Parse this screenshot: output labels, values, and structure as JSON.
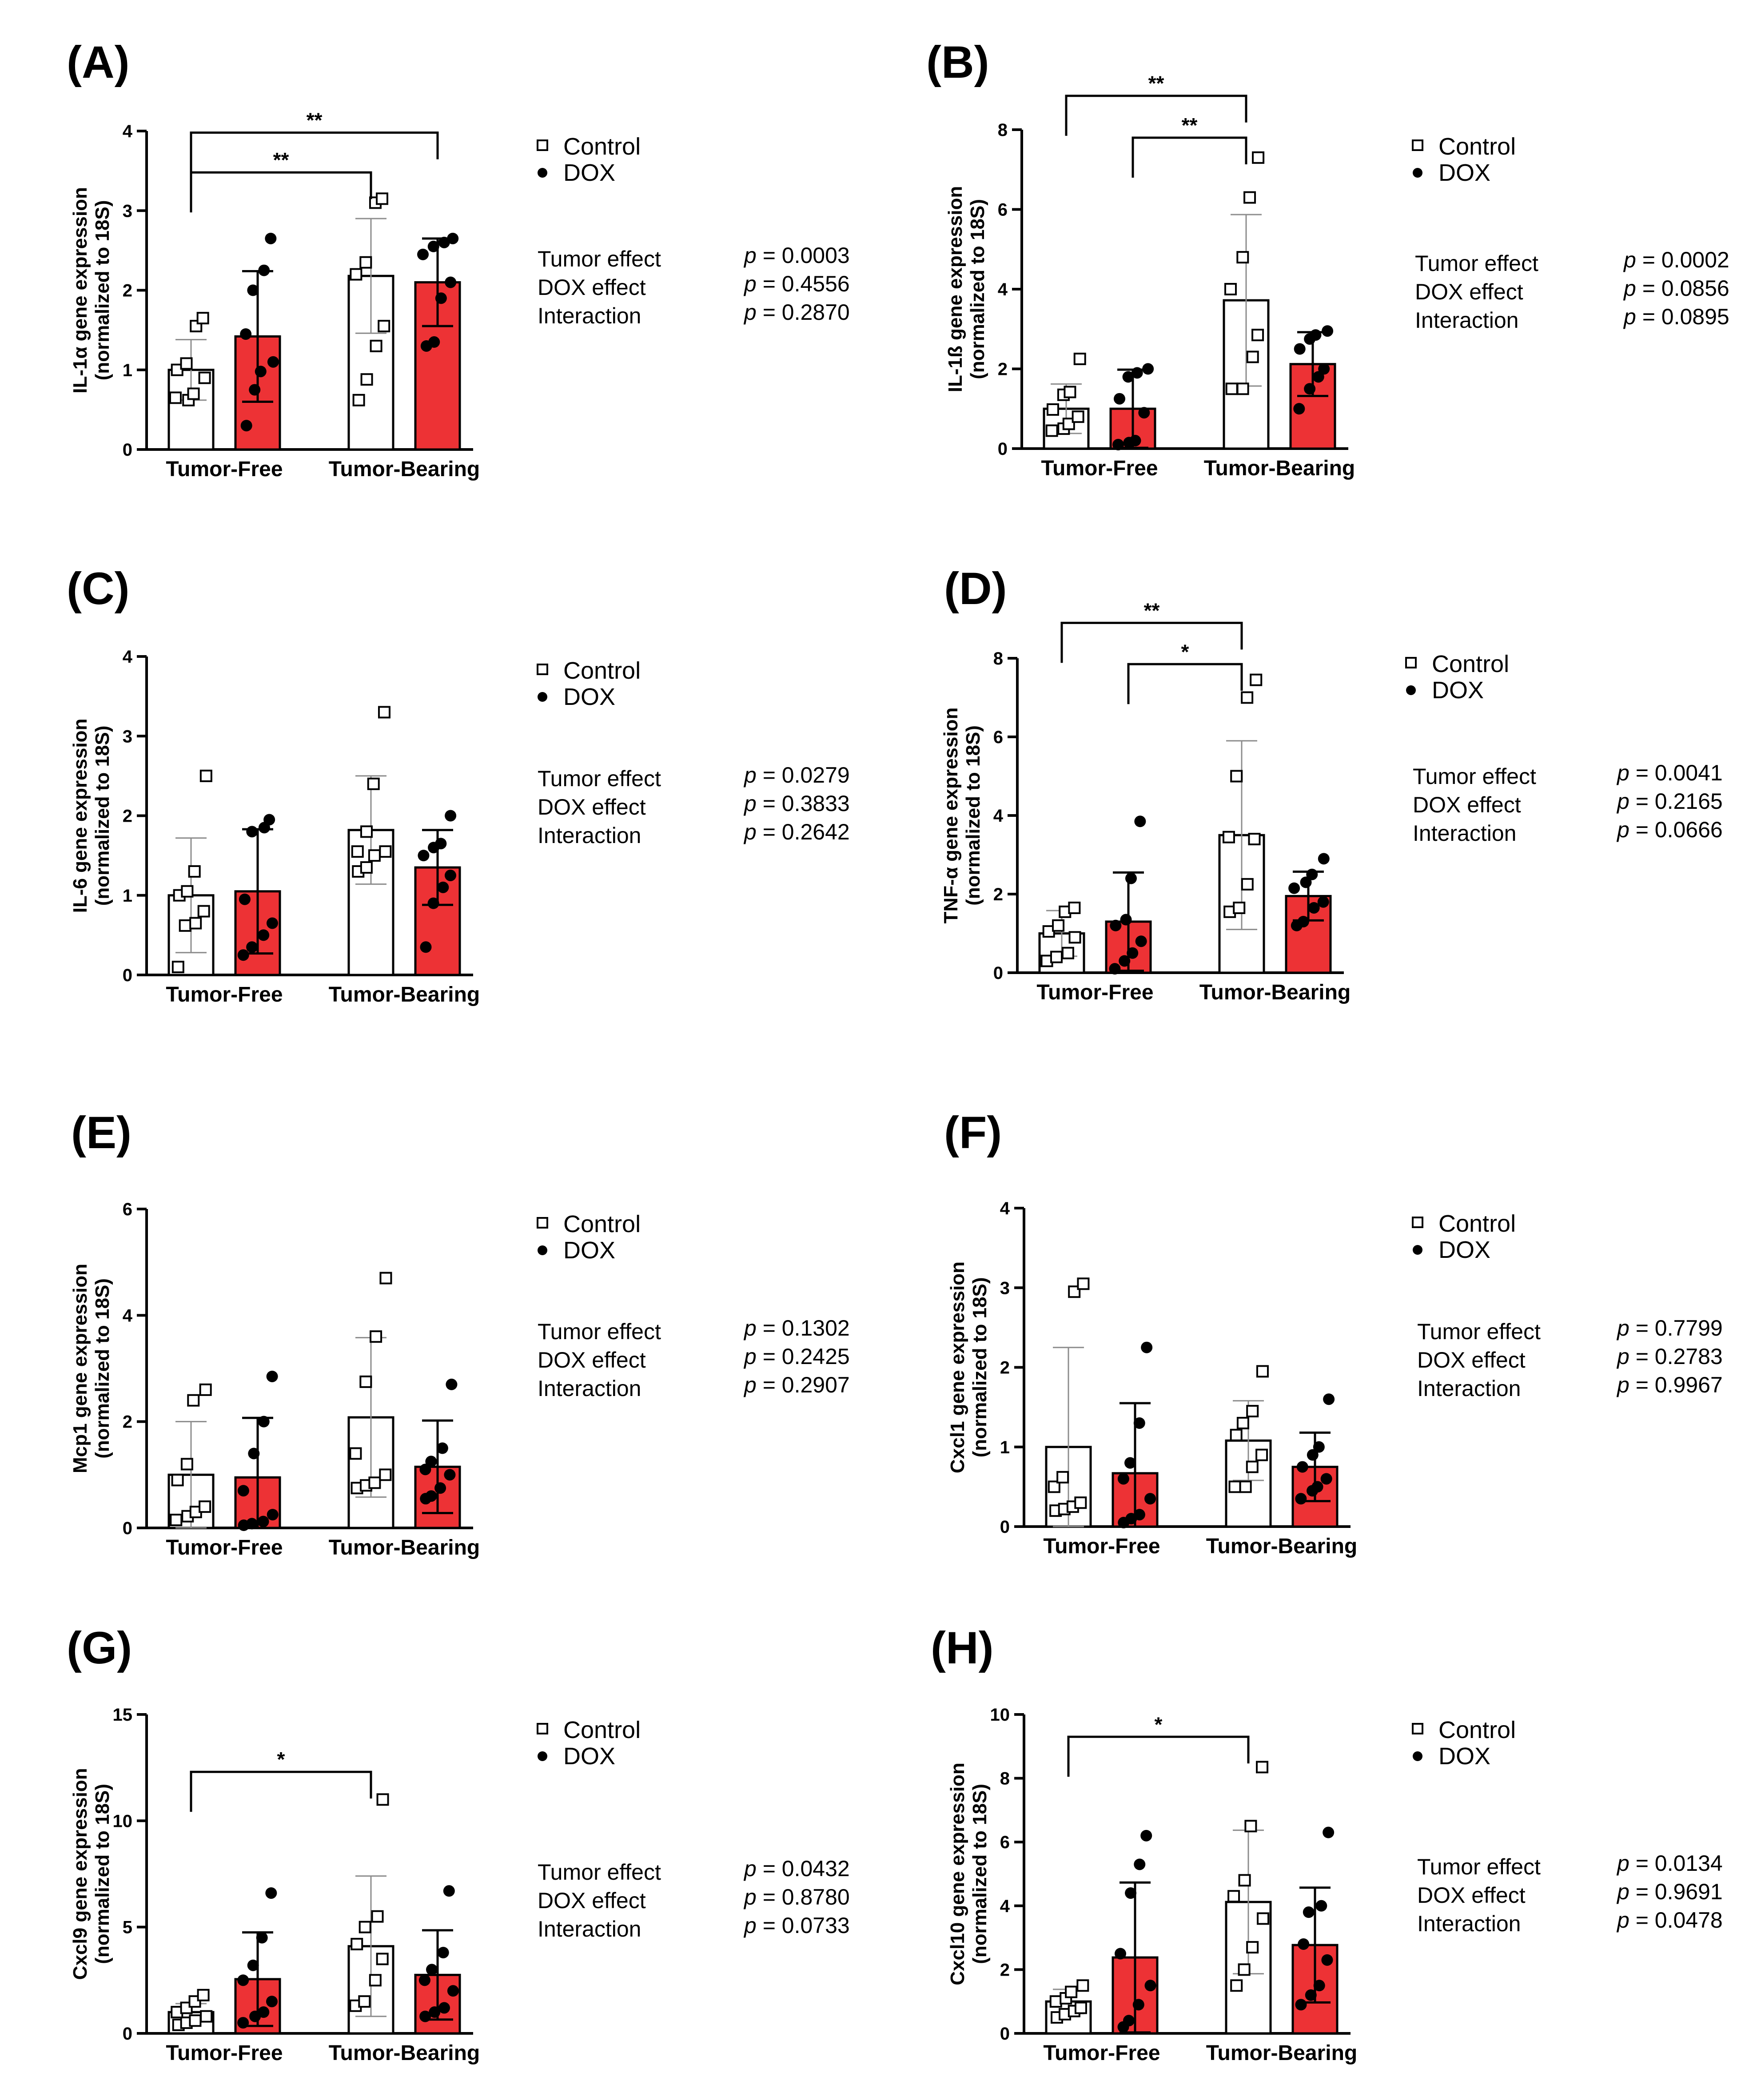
{
  "colors": {
    "control_fill": "#ffffff",
    "dox_fill": "#ed3235",
    "axis": "#000000",
    "error_bar_control": "#8c8c8c",
    "error_bar_dox": "#000000"
  },
  "chart_data": [
    {
      "panel": "(A)",
      "type": "bar",
      "ylabel_line1": "IL-1α gene expression",
      "ylabel_line2": "(normalized to 18S)",
      "ylim": [
        0,
        4
      ],
      "yticks": [
        "0",
        "1",
        "2",
        "3",
        "4"
      ],
      "categories": [
        "Tumor-Free",
        "Tumor-Bearing"
      ],
      "series": [
        {
          "name": "Control",
          "values": [
            1.0,
            2.18
          ],
          "errors": [
            0.38,
            0.72
          ],
          "points": [
            [
              0.65,
              0.62,
              0.7,
              0.9,
              1.0,
              1.08,
              1.55,
              1.65
            ],
            [
              0.62,
              0.88,
              1.3,
              1.55,
              2.2,
              2.35,
              3.1,
              3.15
            ]
          ]
        },
        {
          "name": "DOX",
          "values": [
            1.42,
            2.1
          ],
          "errors": [
            0.82,
            0.55
          ],
          "points": [
            [
              0.3,
              0.75,
              0.98,
              1.1,
              1.45,
              2.0,
              2.25,
              2.65
            ],
            [
              1.3,
              1.35,
              1.9,
              2.1,
              2.45,
              2.55,
              2.6,
              2.65
            ]
          ]
        }
      ],
      "legend": [
        "Control",
        "DOX"
      ],
      "stats": [
        {
          "label": "Tumor effect",
          "value": "p = 0.0003"
        },
        {
          "label": "DOX effect",
          "value": "p = 0.4556"
        },
        {
          "label": "Interaction",
          "value": "p = 0.2870"
        }
      ],
      "significance": [
        {
          "from": "TF-Control",
          "to": "TB-Control",
          "label": "**",
          "y": 3.48
        },
        {
          "from": "TF-Control",
          "to": "TB-DOX",
          "label": "**",
          "y": 3.98
        }
      ]
    },
    {
      "panel": "(B)",
      "type": "bar",
      "ylabel_line1": "IL-1ß gene expression",
      "ylabel_line2": "(normalized to 18S)",
      "ylim": [
        0,
        8
      ],
      "yticks": [
        "0",
        "2",
        "4",
        "6",
        "8"
      ],
      "categories": [
        "Tumor-Free",
        "Tumor-Bearing"
      ],
      "series": [
        {
          "name": "Control",
          "values": [
            1.0,
            3.72
          ],
          "errors": [
            0.62,
            2.15
          ],
          "points": [
            [
              0.45,
              0.5,
              0.62,
              0.8,
              0.98,
              1.35,
              1.42,
              2.25
            ],
            [
              1.5,
              1.5,
              2.3,
              2.85,
              4.0,
              4.8,
              6.3,
              7.3
            ]
          ]
        },
        {
          "name": "DOX",
          "values": [
            1.0,
            2.12
          ],
          "errors": [
            0.98,
            0.8
          ],
          "points": [
            [
              0.1,
              0.15,
              0.2,
              0.9,
              1.25,
              1.8,
              1.9,
              2.0
            ],
            [
              1.0,
              1.5,
              1.8,
              2.0,
              2.5,
              2.75,
              2.85,
              2.95
            ]
          ]
        }
      ],
      "legend": [
        "Control",
        "DOX"
      ],
      "stats": [
        {
          "label": "Tumor effect",
          "value": "p = 0.0002"
        },
        {
          "label": "DOX effect",
          "value": "p = 0.0856"
        },
        {
          "label": "Interaction",
          "value": "p = 0.0895"
        }
      ],
      "significance": [
        {
          "from": "TF-DOX",
          "to": "TB-Control",
          "label": "**",
          "y": 7.8
        },
        {
          "from": "TF-Control",
          "to": "TB-Control",
          "label": "**",
          "y": 8.85
        }
      ]
    },
    {
      "panel": "(C)",
      "type": "bar",
      "ylabel_line1": "IL-6 gene expression",
      "ylabel_line2": "(normalized to 18S)",
      "ylim": [
        0,
        4
      ],
      "yticks": [
        "0",
        "1",
        "2",
        "3",
        "4"
      ],
      "categories": [
        "Tumor-Free",
        "Tumor-Bearing"
      ],
      "series": [
        {
          "name": "Control",
          "values": [
            1.0,
            1.82
          ],
          "errors": [
            0.72,
            0.68
          ],
          "points": [
            [
              0.1,
              0.62,
              0.65,
              0.8,
              1.0,
              1.05,
              1.3,
              2.5
            ],
            [
              1.3,
              1.35,
              1.5,
              1.55,
              1.55,
              1.8,
              2.4,
              3.3
            ]
          ]
        },
        {
          "name": "DOX",
          "values": [
            1.05,
            1.35
          ],
          "errors": [
            0.78,
            0.47
          ],
          "points": [
            [
              0.25,
              0.35,
              0.5,
              0.65,
              0.95,
              1.8,
              1.85,
              1.95
            ],
            [
              0.35,
              0.9,
              1.1,
              1.25,
              1.5,
              1.6,
              1.65,
              2.0
            ]
          ]
        }
      ],
      "legend": [
        "Control",
        "DOX"
      ],
      "stats": [
        {
          "label": "Tumor effect",
          "value": "p = 0.0279"
        },
        {
          "label": "DOX effect",
          "value": "p = 0.3833"
        },
        {
          "label": "Interaction",
          "value": "p = 0.2642"
        }
      ],
      "significance": []
    },
    {
      "panel": "(D)",
      "type": "bar",
      "ylabel_line1": "TNF-α gene expression",
      "ylabel_line2": "(normalized to 18S)",
      "ylim": [
        0,
        8
      ],
      "yticks": [
        "0",
        "2",
        "4",
        "6",
        "8"
      ],
      "categories": [
        "Tumor-Free",
        "Tumor-Bearing"
      ],
      "series": [
        {
          "name": "Control",
          "values": [
            1.0,
            3.5
          ],
          "errors": [
            0.58,
            2.4
          ],
          "points": [
            [
              0.3,
              0.4,
              0.5,
              0.9,
              1.05,
              1.2,
              1.55,
              1.65
            ],
            [
              1.55,
              1.65,
              2.25,
              3.4,
              3.45,
              5.0,
              7.0,
              7.45
            ]
          ]
        },
        {
          "name": "DOX",
          "values": [
            1.3,
            1.95
          ],
          "errors": [
            1.25,
            0.62
          ],
          "points": [
            [
              0.1,
              0.3,
              0.5,
              0.8,
              1.2,
              1.35,
              2.4,
              3.85
            ],
            [
              1.2,
              1.3,
              1.65,
              1.8,
              2.15,
              2.3,
              2.5,
              2.9
            ]
          ]
        }
      ],
      "legend": [
        "Control",
        "DOX"
      ],
      "stats": [
        {
          "label": "Tumor effect",
          "value": "p = 0.0041"
        },
        {
          "label": "DOX effect",
          "value": "p = 0.2165"
        },
        {
          "label": "Interaction",
          "value": "p = 0.0666"
        }
      ],
      "significance": [
        {
          "from": "TF-DOX",
          "to": "TB-Control",
          "label": "*",
          "y": 7.85
        },
        {
          "from": "TF-Control",
          "to": "TB-Control",
          "label": "**",
          "y": 8.9
        }
      ]
    },
    {
      "panel": "(E)",
      "type": "bar",
      "ylabel_line1": "Mcp1 gene expression",
      "ylabel_line2": "(normalized to 18S)",
      "ylim": [
        0,
        6
      ],
      "yticks": [
        "0",
        "2",
        "4",
        "6"
      ],
      "categories": [
        "Tumor-Free",
        "Tumor-Bearing"
      ],
      "series": [
        {
          "name": "Control",
          "values": [
            1.0,
            2.08
          ],
          "errors": [
            1.0,
            1.5
          ],
          "points": [
            [
              0.15,
              0.22,
              0.3,
              0.4,
              0.9,
              1.2,
              2.4,
              2.6
            ],
            [
              0.75,
              0.8,
              0.85,
              1.0,
              1.4,
              2.75,
              3.6,
              4.7
            ]
          ]
        },
        {
          "name": "DOX",
          "values": [
            0.95,
            1.15
          ],
          "errors": [
            1.12,
            0.87
          ],
          "points": [
            [
              0.05,
              0.08,
              0.12,
              0.25,
              0.7,
              1.4,
              2.0,
              2.85
            ],
            [
              0.55,
              0.6,
              0.75,
              1.0,
              1.1,
              1.25,
              1.5,
              2.7
            ]
          ]
        }
      ],
      "legend": [
        "Control",
        "DOX"
      ],
      "stats": [
        {
          "label": "Tumor effect",
          "value": "p = 0.1302"
        },
        {
          "label": "DOX effect",
          "value": "p = 0.2425"
        },
        {
          "label": "Interaction",
          "value": "p = 0.2907"
        }
      ],
      "significance": []
    },
    {
      "panel": "(F)",
      "type": "bar",
      "ylabel_line1": "Cxcl1 gene expression",
      "ylabel_line2": "(normalized to 18S)",
      "ylim": [
        0,
        4
      ],
      "yticks": [
        "0",
        "1",
        "2",
        "3",
        "4"
      ],
      "categories": [
        "Tumor-Free",
        "Tumor-Bearing"
      ],
      "series": [
        {
          "name": "Control",
          "values": [
            1.0,
            1.08
          ],
          "errors": [
            1.25,
            0.5
          ],
          "points": [
            [
              0.2,
              0.22,
              0.25,
              0.3,
              0.5,
              0.62,
              2.95,
              3.05
            ],
            [
              0.5,
              0.5,
              0.75,
              0.9,
              1.15,
              1.3,
              1.45,
              1.95
            ]
          ]
        },
        {
          "name": "DOX",
          "values": [
            0.67,
            0.75
          ],
          "errors": [
            0.88,
            0.43
          ],
          "points": [
            [
              0.05,
              0.1,
              0.15,
              0.35,
              0.6,
              0.8,
              1.3,
              2.25
            ],
            [
              0.35,
              0.45,
              0.5,
              0.6,
              0.75,
              0.9,
              1.0,
              1.6
            ]
          ]
        }
      ],
      "legend": [
        "Control",
        "DOX"
      ],
      "stats": [
        {
          "label": "Tumor effect",
          "value": "p = 0.7799"
        },
        {
          "label": "DOX effect",
          "value": "p = 0.2783"
        },
        {
          "label": "Interaction",
          "value": "p = 0.9967"
        }
      ],
      "significance": []
    },
    {
      "panel": "(G)",
      "type": "bar",
      "ylabel_line1": "Cxcl9 gene expression",
      "ylabel_line2": "(normalized to 18S)",
      "ylim": [
        0,
        15
      ],
      "yticks": [
        "0",
        "5",
        "10",
        "15"
      ],
      "categories": [
        "Tumor-Free",
        "Tumor-Bearing"
      ],
      "series": [
        {
          "name": "Control",
          "values": [
            1.0,
            4.1
          ],
          "errors": [
            0.4,
            3.3
          ],
          "points": [
            [
              0.4,
              0.5,
              0.6,
              0.8,
              1.0,
              1.2,
              1.5,
              1.8
            ],
            [
              1.3,
              1.5,
              2.5,
              3.5,
              4.2,
              5.0,
              5.5,
              11.0
            ]
          ]
        },
        {
          "name": "DOX",
          "values": [
            2.55,
            2.75
          ],
          "errors": [
            2.2,
            2.1
          ],
          "points": [
            [
              0.5,
              0.8,
              1.0,
              1.5,
              2.5,
              3.2,
              4.5,
              6.6
            ],
            [
              0.8,
              1.0,
              1.2,
              2.0,
              2.5,
              3.0,
              3.8,
              6.7
            ]
          ]
        }
      ],
      "legend": [
        "Control",
        "DOX"
      ],
      "stats": [
        {
          "label": "Tumor effect",
          "value": "p = 0.0432"
        },
        {
          "label": "DOX effect",
          "value": "p = 0.8780"
        },
        {
          "label": "Interaction",
          "value": "p = 0.0733"
        }
      ],
      "significance": [
        {
          "from": "TF-Control",
          "to": "TB-Control",
          "label": "*",
          "y": 12.3
        }
      ]
    },
    {
      "panel": "(H)",
      "type": "bar",
      "ylabel_line1": "Cxcl10 gene expression",
      "ylabel_line2": "(normalized to 18S)",
      "ylim": [
        0,
        10
      ],
      "yticks": [
        "0",
        "2",
        "4",
        "6",
        "8",
        "10"
      ],
      "categories": [
        "Tumor-Free",
        "Tumor-Bearing"
      ],
      "series": [
        {
          "name": "Control",
          "values": [
            1.0,
            4.12
          ],
          "errors": [
            0.38,
            2.25
          ],
          "points": [
            [
              0.5,
              0.6,
              0.7,
              0.8,
              1.0,
              1.1,
              1.3,
              1.5
            ],
            [
              1.5,
              2.0,
              2.7,
              3.6,
              4.3,
              4.8,
              6.5,
              8.35
            ]
          ]
        },
        {
          "name": "DOX",
          "values": [
            2.38,
            2.77
          ],
          "errors": [
            2.35,
            1.8
          ],
          "points": [
            [
              0.2,
              0.4,
              0.9,
              1.5,
              2.5,
              4.4,
              5.3,
              6.2
            ],
            [
              0.9,
              1.2,
              1.5,
              2.3,
              2.8,
              3.8,
              4.0,
              6.3
            ]
          ]
        }
      ],
      "legend": [
        "Control",
        "DOX"
      ],
      "stats": [
        {
          "label": "Tumor effect",
          "value": "p = 0.0134"
        },
        {
          "label": "DOX effect",
          "value": "p = 0.9691"
        },
        {
          "label": "Interaction",
          "value": "p = 0.0478"
        }
      ],
      "significance": [
        {
          "from": "TF-Control",
          "to": "TB-Control",
          "label": "*",
          "y": 9.3
        }
      ]
    }
  ]
}
